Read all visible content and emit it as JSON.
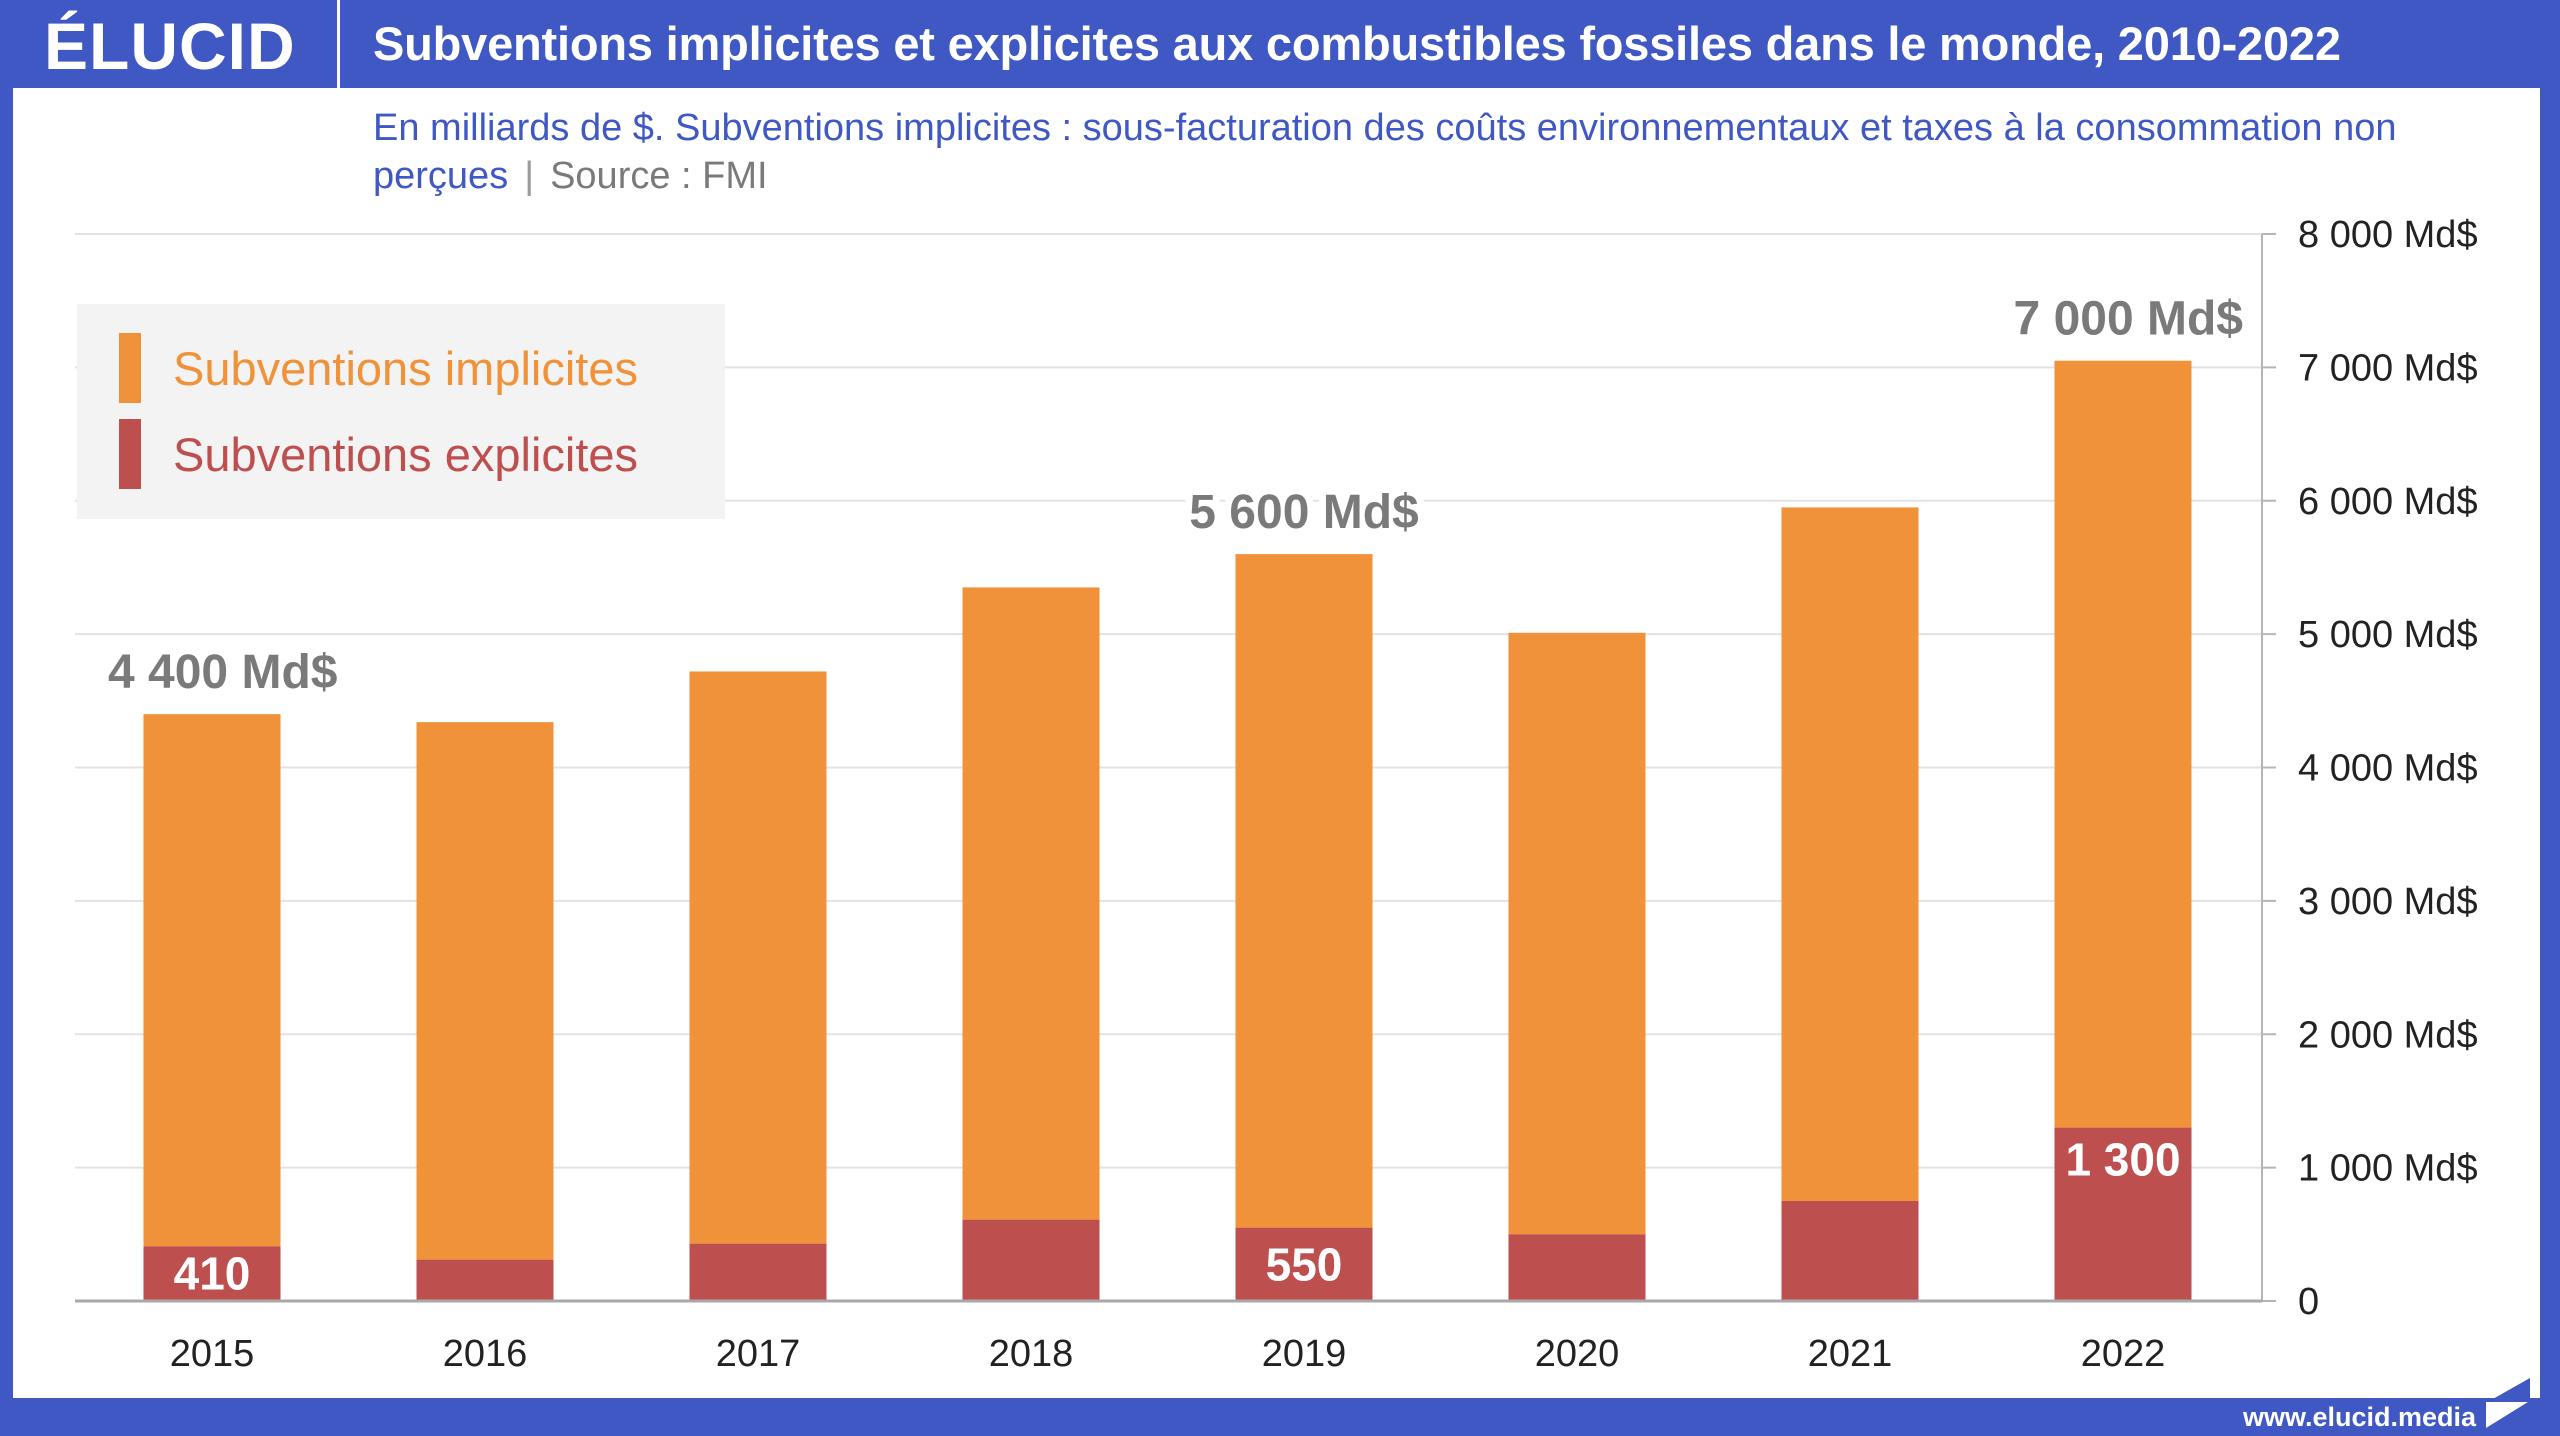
{
  "brand": {
    "logo": "ÉLUCID",
    "url": "www.elucid.media",
    "colors": {
      "brand_blue": "#3f58c4",
      "implicit": "#f0923a",
      "explicit": "#be4f4f",
      "annotation": "#7a7a7a"
    }
  },
  "header": {
    "title": "Subventions implicites et explicites aux combustibles fossiles dans le monde, 2010-2022"
  },
  "subtitle": {
    "text": "En milliards de $. Subventions implicites : sous-facturation des coûts environnementaux et taxes à la consommation non perçues",
    "separator": "|",
    "source": "Source : FMI"
  },
  "legend": {
    "items": [
      {
        "label": "Subventions implicites",
        "color": "#f0923a"
      },
      {
        "label": "Subventions explicites",
        "color": "#be4f4f"
      }
    ]
  },
  "chart_data": {
    "type": "bar",
    "stacked": true,
    "title": "Subventions implicites et explicites aux combustibles fossiles dans le monde, 2010-2022",
    "xlabel": "",
    "ylabel": "",
    "categories": [
      "2015",
      "2016",
      "2017",
      "2018",
      "2019",
      "2020",
      "2021",
      "2022"
    ],
    "series": [
      {
        "name": "Subventions explicites",
        "color": "#be4f4f",
        "values": [
          410,
          310,
          430,
          610,
          550,
          500,
          750,
          1300
        ]
      },
      {
        "name": "Subventions implicites",
        "color": "#f0923a",
        "values": [
          3990,
          4030,
          4290,
          4740,
          5050,
          4510,
          5200,
          5750
        ]
      }
    ],
    "totals": [
      4400,
      4340,
      4720,
      5350,
      5600,
      5010,
      5950,
      7050
    ],
    "ylim": [
      0,
      8000
    ],
    "yticks": [
      0,
      1000,
      2000,
      3000,
      4000,
      5000,
      6000,
      7000,
      8000
    ],
    "ytick_labels": [
      "0",
      "1 000 Md$",
      "2 000 Md$",
      "3 000 Md$",
      "4 000 Md$",
      "5 000 Md$",
      "6 000 Md$",
      "7 000 Md$",
      "8 000 Md$"
    ],
    "y_axis_side": "right",
    "grid": true,
    "legend_position": "top-left",
    "total_annotations": [
      {
        "category": "2015",
        "text": "4 400 Md$"
      },
      {
        "category": "2019",
        "text": "5 600 Md$"
      },
      {
        "category": "2022",
        "text": "7 000 Md$"
      }
    ],
    "explicit_annotations": [
      {
        "category": "2015",
        "text": "410"
      },
      {
        "category": "2019",
        "text": "550"
      },
      {
        "category": "2022",
        "text": "1 300"
      }
    ]
  }
}
